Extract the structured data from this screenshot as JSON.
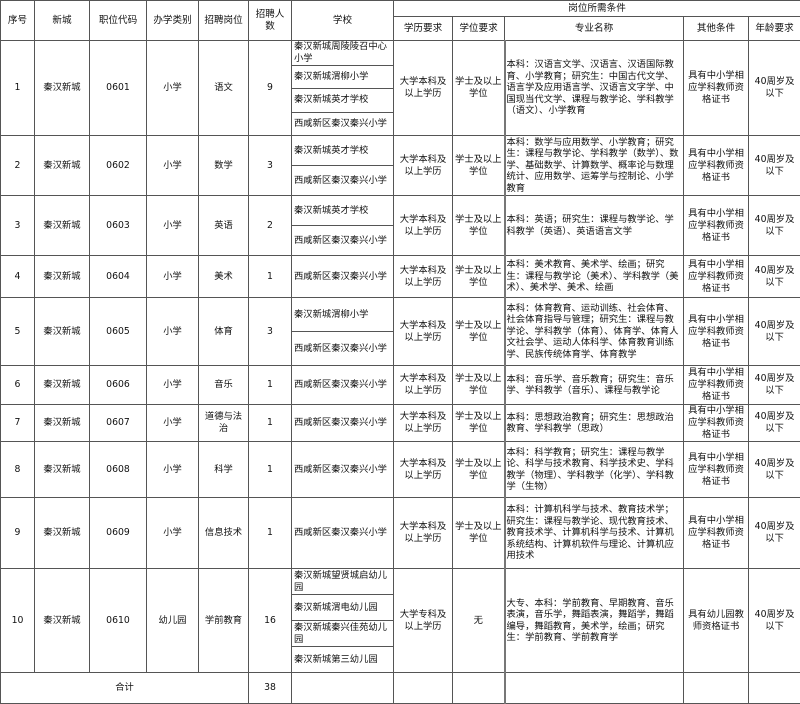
{
  "header": {
    "seq": "序号",
    "district": "新城",
    "code": "职位代码",
    "school_type": "办学类别",
    "position": "招聘岗位",
    "count": "招聘人数",
    "school": "学校",
    "requirements": "岗位所需条件",
    "education": "学历要求",
    "degree": "学位要求",
    "major": "专业名称",
    "other": "其他条件",
    "age": "年龄要求"
  },
  "rows": [
    {
      "seq": "1",
      "district": "秦汉新城",
      "code": "0601",
      "type": "小学",
      "position": "语文",
      "count": "9",
      "schools": [
        "秦汉新城周陵陵召中心小学",
        "秦汉新城渭柳小学",
        "秦汉新城英才学校",
        "西咸新区秦汉秦兴小学"
      ],
      "education": "大学本科及以上学历",
      "degree": "学士及以上学位",
      "major": "本科：汉语言文学、汉语言、汉语国际教育、小学教育；研究生：中国古代文学、语言学及应用语言学、汉语言文字学、中国现当代文学、课程与教学论、学科教学（语文）、小学教育",
      "other": "具有中小学相应学科教师资格证书",
      "age": "40周岁及以下"
    },
    {
      "seq": "2",
      "district": "秦汉新城",
      "code": "0602",
      "type": "小学",
      "position": "数学",
      "count": "3",
      "schools": [
        "秦汉新城英才学校",
        "西咸新区秦汉秦兴小学"
      ],
      "education": "大学本科及以上学历",
      "degree": "学士及以上学位",
      "major": "本科：数学与应用数学、小学教育；研究生：课程与教学论、学科教学（数学）、数学、基础数学、计算数学、概率论与数理统计、应用数学、运筹学与控制论、小学教育",
      "other": "具有中小学相应学科教师资格证书",
      "age": "40周岁及以下"
    },
    {
      "seq": "3",
      "district": "秦汉新城",
      "code": "0603",
      "type": "小学",
      "position": "英语",
      "count": "2",
      "schools": [
        "秦汉新城英才学校",
        "西咸新区秦汉秦兴小学"
      ],
      "education": "大学本科及以上学历",
      "degree": "学士及以上学位",
      "major": "本科：英语；研究生：课程与教学论、学科教学（英语）、英语语言文学",
      "other": "具有中小学相应学科教师资格证书",
      "age": "40周岁及以下"
    },
    {
      "seq": "4",
      "district": "秦汉新城",
      "code": "0604",
      "type": "小学",
      "position": "美术",
      "count": "1",
      "schools": [
        "西咸新区秦汉秦兴小学"
      ],
      "education": "大学本科及以上学历",
      "degree": "学士及以上学位",
      "major": "本科：美术教育、美术学、绘画；研究生：课程与教学论（美术）、学科教学（美术）、美术学、美术、绘画",
      "other": "具有中小学相应学科教师资格证书",
      "age": "40周岁及以下"
    },
    {
      "seq": "5",
      "district": "秦汉新城",
      "code": "0605",
      "type": "小学",
      "position": "体育",
      "count": "3",
      "schools": [
        "秦汉新城渭柳小学",
        "西咸新区秦汉秦兴小学"
      ],
      "education": "大学本科及以上学历",
      "degree": "学士及以上学位",
      "major": "本科：体育教育、运动训练、社会体育、社会体育指导与管理；研究生：课程与教学论、学科教学（体育）、体育学、体育人文社会学、运动人体科学、体育教育训练学、民族传统体育学、体育教学",
      "other": "具有中小学相应学科教师资格证书",
      "age": "40周岁及以下"
    },
    {
      "seq": "6",
      "district": "秦汉新城",
      "code": "0606",
      "type": "小学",
      "position": "音乐",
      "count": "1",
      "schools": [
        "西咸新区秦汉秦兴小学"
      ],
      "education": "大学本科及以上学历",
      "degree": "学士及以上学位",
      "major": "本科：音乐学、音乐教育；研究生：音乐学、学科教学（音乐）、课程与教学论",
      "other": "具有中小学相应学科教师资格证书",
      "age": "40周岁及以下"
    },
    {
      "seq": "7",
      "district": "秦汉新城",
      "code": "0607",
      "type": "小学",
      "position": "道德与法治",
      "count": "1",
      "schools": [
        "西咸新区秦汉秦兴小学"
      ],
      "education": "大学本科及以上学历",
      "degree": "学士及以上学位",
      "major": "本科：思想政治教育；研究生：思想政治教育、学科教学（思政）",
      "other": "具有中小学相应学科教师资格证书",
      "age": "40周岁及以下"
    },
    {
      "seq": "8",
      "district": "秦汉新城",
      "code": "0608",
      "type": "小学",
      "position": "科学",
      "count": "1",
      "schools": [
        "西咸新区秦汉秦兴小学"
      ],
      "education": "大学本科及以上学历",
      "degree": "学士及以上学位",
      "major": "本科：科学教育；研究生：课程与教学论、科学与技术教育、科学技术史、学科教学（物理）、学科教学（化学）、学科教学（生物）",
      "other": "具有中小学相应学科教师资格证书",
      "age": "40周岁及以下"
    },
    {
      "seq": "9",
      "district": "秦汉新城",
      "code": "0609",
      "type": "小学",
      "position": "信息技术",
      "count": "1",
      "schools": [
        "西咸新区秦汉秦兴小学"
      ],
      "education": "大学本科及以上学历",
      "degree": "学士及以上学位",
      "major": "本科：计算机科学与技术、教育技术学；研究生：课程与教学论、现代教育技术、教育技术学、计算机科学与技术、计算机系统结构、计算机软件与理论、计算机应用技术",
      "other": "具有中小学相应学科教师资格证书",
      "age": "40周岁及以下"
    },
    {
      "seq": "10",
      "district": "秦汉新城",
      "code": "0610",
      "type": "幼儿园",
      "position": "学前教育",
      "count": "16",
      "schools": [
        "秦汉新城望贤城启幼儿园",
        "秦汉新城渭电幼儿园",
        "秦汉新城秦兴佳苑幼儿园",
        "秦汉新城第三幼儿园"
      ],
      "education": "大学专科及以上学历",
      "degree": "无",
      "major": "大专、本科：学前教育、早期教育、音乐表演，音乐学，舞蹈表演，舞蹈学，舞蹈编导，舞蹈教育，美术学，绘画；研究生：学前教育、学前教育学",
      "other": "具有幼儿园教师资格证书",
      "age": "40周岁及以下"
    }
  ],
  "total": {
    "label": "合计",
    "count": "38"
  }
}
